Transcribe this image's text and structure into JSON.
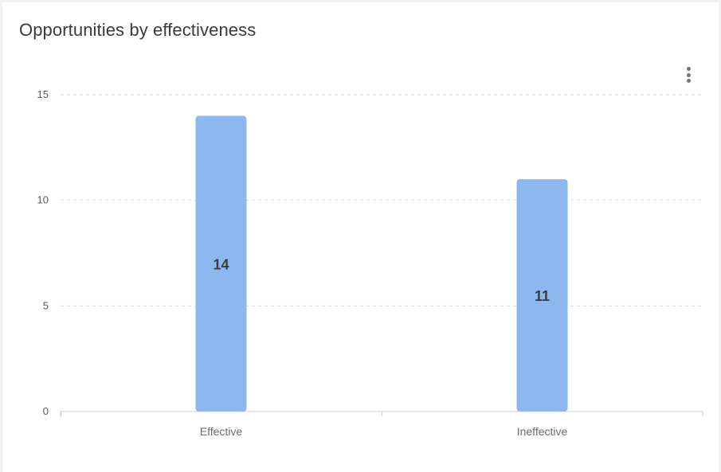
{
  "card": {
    "title": "Opportunities by effectiveness"
  },
  "menu": {
    "icon": "more-vertical-icon"
  },
  "colors": {
    "bar": "#8db8ef",
    "grid": "#d6d6d6",
    "axis": "#d0d0d0"
  },
  "chart_data": {
    "type": "bar",
    "title": "Opportunities by effectiveness",
    "categories": [
      "Effective",
      "Ineffective"
    ],
    "values": [
      14,
      11
    ],
    "data_labels": [
      "14",
      "11"
    ],
    "yticks": [
      "0",
      "5",
      "10",
      "15"
    ],
    "ylim": [
      0,
      15
    ],
    "xlabel": "",
    "ylabel": "",
    "grid": true,
    "legend": "none"
  }
}
